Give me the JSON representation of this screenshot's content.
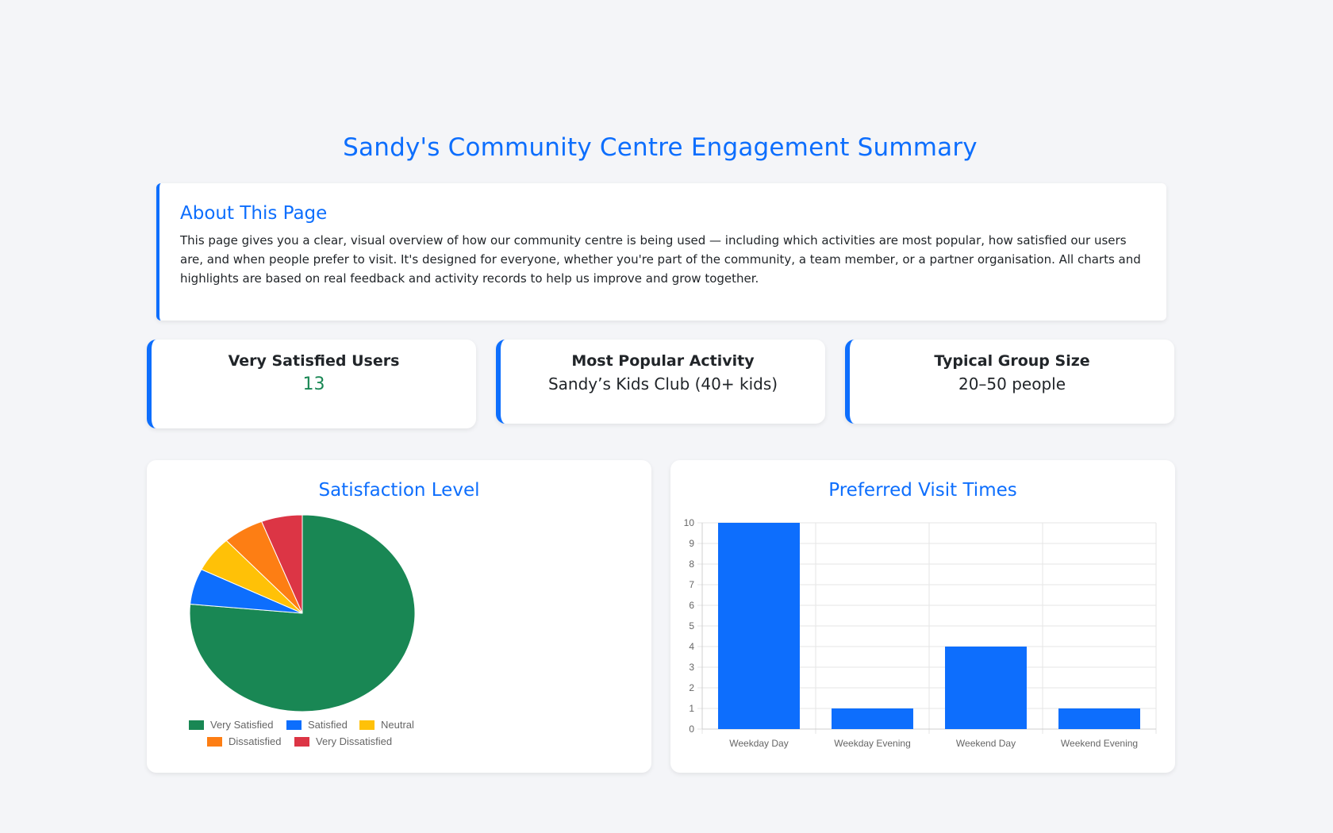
{
  "page": {
    "title": "Sandy's Community Centre Engagement Summary"
  },
  "about": {
    "title": "About This Page",
    "text": "This page gives you a clear, visual overview of how our community centre is being used — including which activities are most popular, how satisfied our users are, and when people prefer to visit. It's designed for everyone, whether you're part of the community, a team member, or a partner organisation. All charts and highlights are based on real feedback and activity records to help us improve and grow together."
  },
  "stats": [
    {
      "label": "Very Satisfied Users",
      "value": "13"
    },
    {
      "label": "Most Popular Activity",
      "value": "Sandy’s Kids Club (40+ kids)"
    },
    {
      "label": "Typical Group Size",
      "value": "20–50 people"
    }
  ],
  "colors": {
    "accent": "#0d6efd",
    "very_satisfied": "#198754",
    "satisfied": "#0d6efd",
    "neutral": "#ffc107",
    "dissatisfied": "#fd7e14",
    "very_dissatisfied": "#dc3545"
  },
  "chart_data": [
    {
      "type": "pie",
      "title": "Satisfaction Level",
      "categories": [
        "Very Satisfied",
        "Satisfied",
        "Neutral",
        "Dissatisfied",
        "Very Dissatisfied"
      ],
      "values": [
        13,
        1,
        1,
        1,
        1
      ],
      "colors": [
        "#198754",
        "#0d6efd",
        "#ffc107",
        "#fd7e14",
        "#dc3545"
      ],
      "legend": "bottom"
    },
    {
      "type": "bar",
      "title": "Preferred Visit Times",
      "categories": [
        "Weekday Day",
        "Weekday Evening",
        "Weekend Day",
        "Weekend Evening"
      ],
      "values": [
        10,
        1,
        4,
        1
      ],
      "ylim": [
        0,
        10
      ],
      "yticks": [
        0,
        1,
        2,
        3,
        4,
        5,
        6,
        7,
        8,
        9,
        10
      ],
      "color": "#0d6efd",
      "grid": true,
      "xlabel": "",
      "ylabel": ""
    }
  ]
}
